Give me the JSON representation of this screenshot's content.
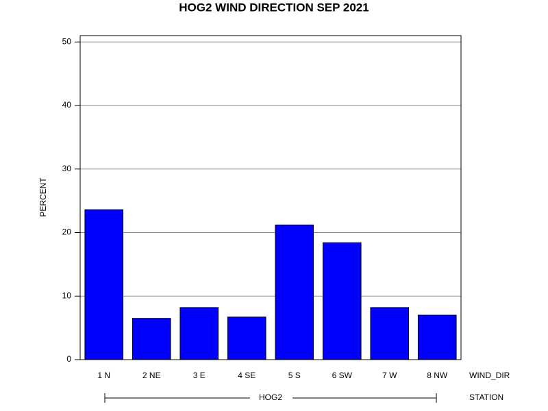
{
  "chart_data": {
    "type": "bar",
    "title": "HOG2 WIND DIRECTION SEP 2021",
    "y_label": "PERCENT",
    "x_label": "WIND_DIR",
    "group_label": "STATION",
    "group": "HOG2",
    "categories": [
      "1 N",
      "2 NE",
      "3 E",
      "4 SE",
      "5 S",
      "6 SW",
      "7 W",
      "8 NW"
    ],
    "values": [
      23.6,
      6.5,
      8.2,
      6.7,
      21.2,
      18.4,
      8.2,
      7.0
    ],
    "color": "#0000ff",
    "ylim": [
      0,
      51
    ],
    "yticks": [
      0,
      10,
      20,
      30,
      40,
      50
    ],
    "grid": true
  }
}
